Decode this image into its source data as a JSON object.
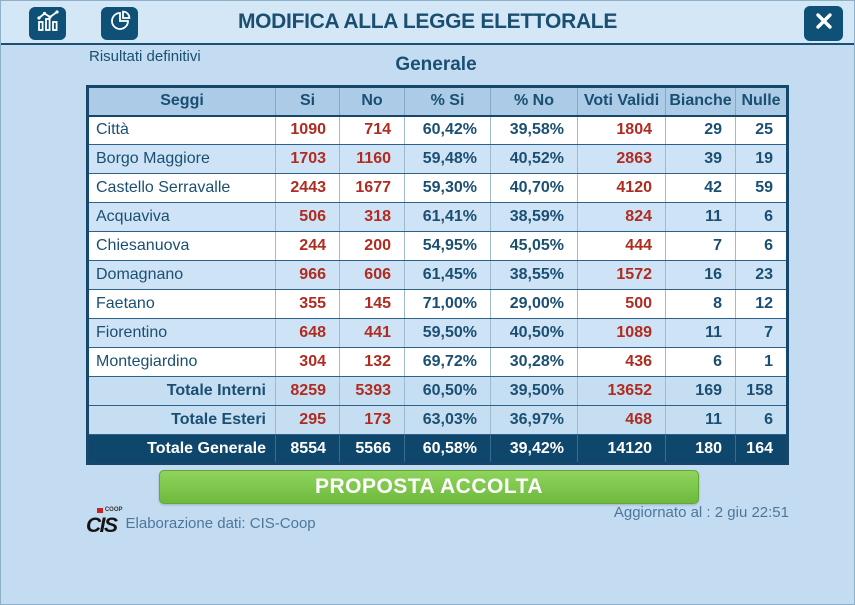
{
  "window": {
    "title": "MODIFICA ALLA LEGGE ELETTORALE"
  },
  "toolbar": {
    "icons": [
      {
        "name": "bar-chart-icon"
      },
      {
        "name": "pie-chart-icon"
      },
      {
        "name": "close-icon"
      }
    ]
  },
  "status_text": "Risultati definitivi",
  "section_title": "Generale",
  "table": {
    "headers": [
      "Seggi",
      "Si",
      "No",
      "% Si",
      "% No",
      "Voti Validi",
      "Bianche",
      "Nulle"
    ],
    "rows": [
      {
        "seggio": "Città",
        "si": "1090",
        "no": "714",
        "pct_si": "60,42%",
        "pct_no": "39,58%",
        "voti_validi": "1804",
        "bianche": "29",
        "nulle": "25"
      },
      {
        "seggio": "Borgo Maggiore",
        "si": "1703",
        "no": "1160",
        "pct_si": "59,48%",
        "pct_no": "40,52%",
        "voti_validi": "2863",
        "bianche": "39",
        "nulle": "19"
      },
      {
        "seggio": "Castello Serravalle",
        "si": "2443",
        "no": "1677",
        "pct_si": "59,30%",
        "pct_no": "40,70%",
        "voti_validi": "4120",
        "bianche": "42",
        "nulle": "59"
      },
      {
        "seggio": "Acquaviva",
        "si": "506",
        "no": "318",
        "pct_si": "61,41%",
        "pct_no": "38,59%",
        "voti_validi": "824",
        "bianche": "11",
        "nulle": "6"
      },
      {
        "seggio": "Chiesanuova",
        "si": "244",
        "no": "200",
        "pct_si": "54,95%",
        "pct_no": "45,05%",
        "voti_validi": "444",
        "bianche": "7",
        "nulle": "6"
      },
      {
        "seggio": "Domagnano",
        "si": "966",
        "no": "606",
        "pct_si": "61,45%",
        "pct_no": "38,55%",
        "voti_validi": "1572",
        "bianche": "16",
        "nulle": "23"
      },
      {
        "seggio": "Faetano",
        "si": "355",
        "no": "145",
        "pct_si": "71,00%",
        "pct_no": "29,00%",
        "voti_validi": "500",
        "bianche": "8",
        "nulle": "12"
      },
      {
        "seggio": "Fiorentino",
        "si": "648",
        "no": "441",
        "pct_si": "59,50%",
        "pct_no": "40,50%",
        "voti_validi": "1089",
        "bianche": "11",
        "nulle": "7"
      },
      {
        "seggio": "Montegiardino",
        "si": "304",
        "no": "132",
        "pct_si": "69,72%",
        "pct_no": "30,28%",
        "voti_validi": "436",
        "bianche": "6",
        "nulle": "1"
      }
    ],
    "totals": [
      {
        "style": "subtotal",
        "seggio": "Totale Interni",
        "si": "8259",
        "no": "5393",
        "pct_si": "60,50%",
        "pct_no": "39,50%",
        "voti_validi": "13652",
        "bianche": "169",
        "nulle": "158"
      },
      {
        "style": "subtotal",
        "seggio": "Totale Esteri",
        "si": "295",
        "no": "173",
        "pct_si": "63,03%",
        "pct_no": "36,97%",
        "voti_validi": "468",
        "bianche": "11",
        "nulle": "6"
      },
      {
        "style": "grand",
        "seggio": "Totale Generale",
        "si": "8554",
        "no": "5566",
        "pct_si": "60,58%",
        "pct_no": "39,42%",
        "voti_validi": "14120",
        "bianche": "180",
        "nulle": "164"
      }
    ]
  },
  "result_banner": "PROPOSTA ACCOLTA",
  "footer": {
    "logo_text": "CIS",
    "logo_coop": "COOP",
    "credit": "Elaborazione dati: CIS-Coop",
    "updated": "Aggiornato al : 2 giu 22:51"
  },
  "colors": {
    "page_bg": "#c3dcf1",
    "titlebar_bg": "#d3e7f7",
    "dark_button": "#0e5076",
    "navy_text": "#1b4f72",
    "header_bg": "#abcbe7",
    "row_alt_bg": "#cfe3f6",
    "subtotal_bg": "#c6def2",
    "grand_bg": "#0f466c",
    "value_red": "#b02b20",
    "banner_green": "#76c043",
    "footer_text": "#4c779d",
    "logo_red": "#cc2320"
  }
}
